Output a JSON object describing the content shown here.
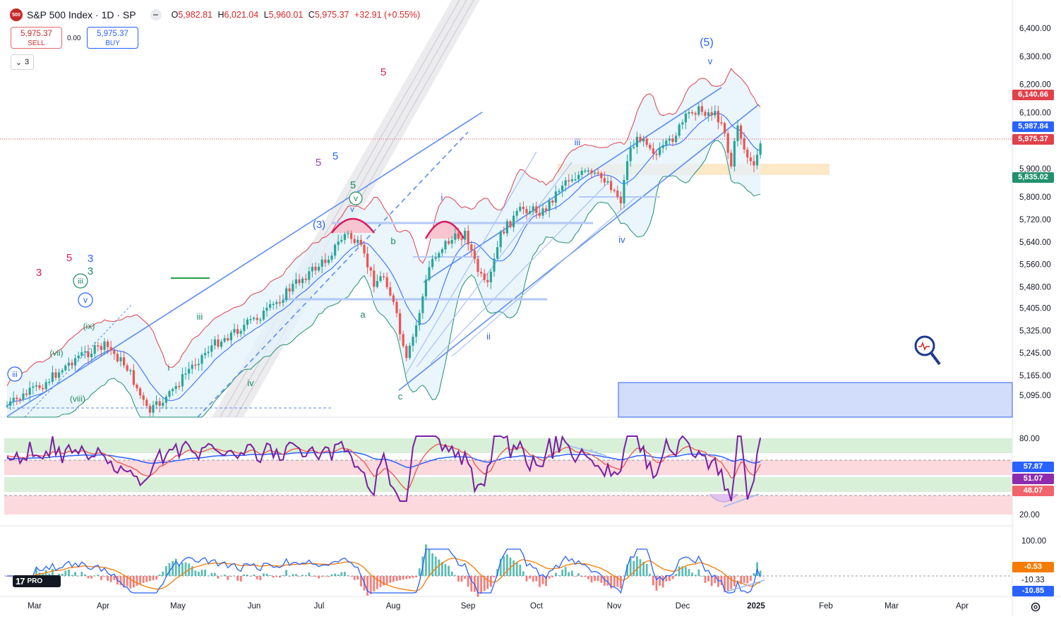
{
  "header": {
    "symbol_badge": "500",
    "title": "S&P 500 Index · 1D · SP",
    "ohlc": [
      {
        "k": "O",
        "v": "5,982.81"
      },
      {
        "k": "H",
        "v": "6,021.04"
      },
      {
        "k": "L",
        "v": "5,960.01"
      },
      {
        "k": "C",
        "v": "5,975.37"
      }
    ],
    "change": "+32.91 (+0.55%)"
  },
  "trade": {
    "sell_price": "5,975.37",
    "sell_label": "SELL",
    "spread": "0.00",
    "buy_price": "5,975.37",
    "buy_label": "BUY"
  },
  "collapse_count": "3",
  "price_axis": {
    "ticks": [
      "6,400.00",
      "6,300.00",
      "6,200.00",
      "6,100.00",
      "5,900.00",
      "5,800.00",
      "5,720.00",
      "5,640.00",
      "5,560.00",
      "5,480.00",
      "5,405.00",
      "5,325.00",
      "5,245.00",
      "5,165.00",
      "5,095.00"
    ],
    "tags": [
      {
        "value": "6,140.66",
        "color": "#e0414a"
      },
      {
        "value": "5,987.84",
        "color": "#2962ff"
      },
      {
        "value": "5,975.37",
        "color": "#e0414a"
      },
      {
        "value": "5,835.02",
        "color": "#22916e"
      }
    ]
  },
  "rsi_axis": {
    "ticks": [
      "80.00",
      "20.00"
    ],
    "tags": [
      {
        "value": "57.87",
        "color": "#2962ff"
      },
      {
        "value": "51.07",
        "color": "#8e2cad"
      },
      {
        "value": "48.07",
        "color": "#f0646c"
      }
    ]
  },
  "macd_axis": {
    "ticks": [
      "100.00",
      "-10.33"
    ],
    "tags": [
      {
        "value": "-0.53",
        "color": "#f57c00"
      },
      {
        "value": "-10.85",
        "color": "#2962ff"
      }
    ]
  },
  "time_axis": [
    "Mar",
    "Apr",
    "May",
    "Jun",
    "Jul",
    "Aug",
    "Sep",
    "Oct",
    "Nov",
    "Dec",
    "2025",
    "Feb",
    "Mar",
    "Apr"
  ],
  "wave_labels": {
    "l1": "(5)",
    "l2": "v",
    "l3": "5",
    "l4": "iii",
    "l5": "5",
    "l6": "5",
    "l7": "5",
    "l8": "(3)",
    "l9": "v",
    "l10": "i",
    "l11": "b",
    "l12": "a",
    "l13": "c",
    "l14": "ii",
    "l15": "iv",
    "l16": "5",
    "l17": "3",
    "l18": "3",
    "l19": "3",
    "l20": "iii",
    "l21": "v",
    "l22": "(ix)",
    "l23": "(vii)",
    "l24": "iii",
    "l25": "i",
    "l26": "iv",
    "l27": "(viii)",
    "l28": "iii",
    "l29": "v"
  },
  "logo_text": "PRO",
  "colors": {
    "up": "#26a69a",
    "down": "#ef5350",
    "channel": "#5b8def",
    "rsi": "#7b1fa2",
    "macd": "#2962ff",
    "signal": "#f57c00"
  }
}
